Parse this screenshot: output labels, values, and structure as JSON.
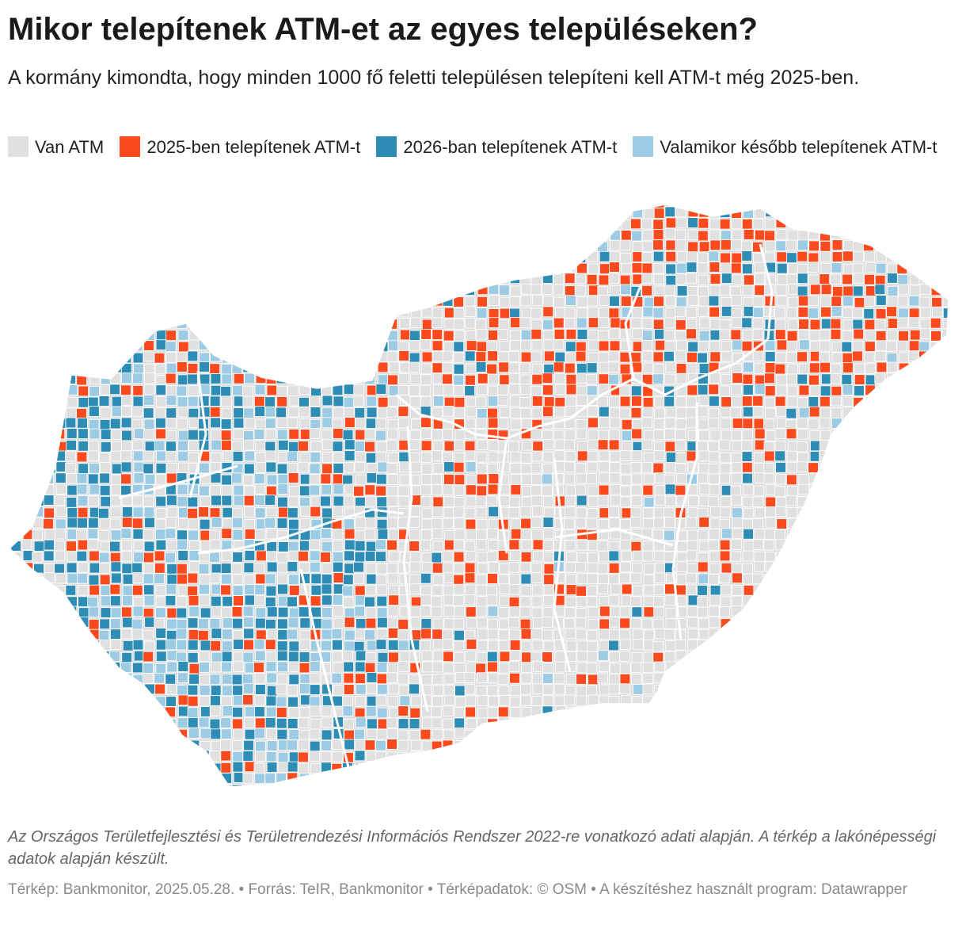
{
  "header": {
    "title": "Mikor telepítenek ATM-et az egyes településeken?",
    "subtitle": "A kormány kimondta, hogy minden 1000 fő feletti településen telepíteni kell ATM-t még 2025-ben."
  },
  "legend": [
    {
      "label": "Van ATM",
      "color": "#e0e0e0"
    },
    {
      "label": "2025-ben telepítenek ATM-t",
      "color": "#fb4b1e"
    },
    {
      "label": "2026-ban telepítenek ATM-t",
      "color": "#2e8db5"
    },
    {
      "label": "Valamikor később telepítenek ATM-t",
      "color": "#9ccbe3"
    }
  ],
  "colors": {
    "has_atm": "#e0e0e0",
    "y2025": "#fb4b1e",
    "y2026": "#2e8db5",
    "later": "#9ccbe3",
    "borders": "#ffffff"
  },
  "notes": "Az Országos Területfejlesztési és Területrendezési Információs Rendszer 2022-re vonatkozó adati alapján. A térkép a lakónépességi adatok alapján készült.",
  "byline": "Térkép: Bankmonitor, 2025.05.28. • Forrás: TeIR, Bankmonitor • Térképadatok: © OSM  • A készítéshez használt program: Datawrapper"
}
